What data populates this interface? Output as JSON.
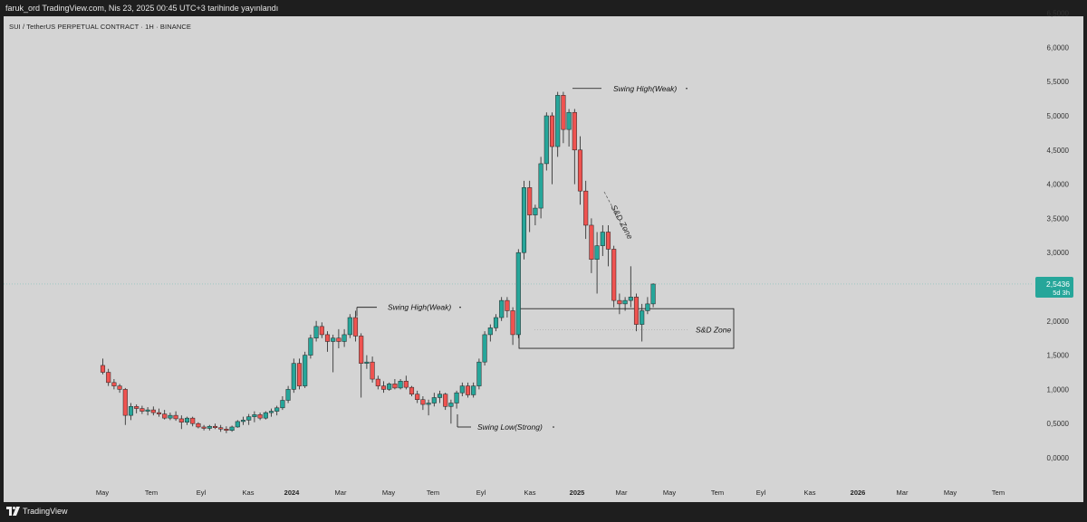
{
  "header": {
    "publish_info": "faruk_ord TradingView.com, Nis 23, 2025 00:45 UTC+3 tarihinde yayınlandı"
  },
  "chart_title": "SUI / TetherUS PERPETUAL CONTRACT · 1H · BINANCE",
  "footer": {
    "brand": "TradingView"
  },
  "colors": {
    "up": "#26a69a",
    "down": "#ef5350",
    "background": "#d4d4d4",
    "price_tag": "#26a69a"
  },
  "chart_data": {
    "type": "candlestick",
    "y_axis": {
      "min": 0,
      "max": 6.5,
      "scale": "linear",
      "position": "right",
      "ticks": [
        "6,5000",
        "6,0000",
        "5,5000",
        "5,0000",
        "4,5000",
        "4,0000",
        "3,5000",
        "3,0000",
        "2,5000",
        "2,0000",
        "1,5000",
        "1,0000",
        "0,5000",
        "0,0000"
      ]
    },
    "x_axis": {
      "ticks": [
        {
          "label": "May",
          "bold": false
        },
        {
          "label": "Tem",
          "bold": false
        },
        {
          "label": "Eyl",
          "bold": false
        },
        {
          "label": "Kas",
          "bold": false
        },
        {
          "label": "2024",
          "bold": true
        },
        {
          "label": "Mar",
          "bold": false
        },
        {
          "label": "May",
          "bold": false
        },
        {
          "label": "Tem",
          "bold": false
        },
        {
          "label": "Eyl",
          "bold": false
        },
        {
          "label": "Kas",
          "bold": false
        },
        {
          "label": "2025",
          "bold": true
        },
        {
          "label": "Mar",
          "bold": false
        },
        {
          "label": "May",
          "bold": false
        },
        {
          "label": "Tem",
          "bold": false
        },
        {
          "label": "Eyl",
          "bold": false
        },
        {
          "label": "Kas",
          "bold": false
        },
        {
          "label": "2026",
          "bold": true
        },
        {
          "label": "Mar",
          "bold": false
        },
        {
          "label": "May",
          "bold": false
        },
        {
          "label": "Tem",
          "bold": false
        }
      ]
    },
    "last_price": {
      "value": "2,5436",
      "countdown": "5d 3h"
    },
    "candles": [
      [
        1.35,
        1.45,
        1.22,
        1.25
      ],
      [
        1.25,
        1.3,
        1.05,
        1.1
      ],
      [
        1.1,
        1.15,
        1.0,
        1.05
      ],
      [
        1.05,
        1.08,
        0.95,
        1.0
      ],
      [
        1.0,
        1.02,
        0.48,
        0.62
      ],
      [
        0.62,
        0.8,
        0.55,
        0.75
      ],
      [
        0.75,
        0.78,
        0.65,
        0.72
      ],
      [
        0.72,
        0.76,
        0.64,
        0.68
      ],
      [
        0.68,
        0.74,
        0.62,
        0.7
      ],
      [
        0.7,
        0.75,
        0.62,
        0.66
      ],
      [
        0.66,
        0.72,
        0.6,
        0.64
      ],
      [
        0.64,
        0.7,
        0.56,
        0.58
      ],
      [
        0.58,
        0.66,
        0.55,
        0.62
      ],
      [
        0.62,
        0.68,
        0.54,
        0.57
      ],
      [
        0.57,
        0.62,
        0.42,
        0.52
      ],
      [
        0.52,
        0.6,
        0.48,
        0.58
      ],
      [
        0.58,
        0.6,
        0.46,
        0.5
      ],
      [
        0.5,
        0.52,
        0.43,
        0.45
      ],
      [
        0.45,
        0.48,
        0.4,
        0.43
      ],
      [
        0.43,
        0.48,
        0.4,
        0.46
      ],
      [
        0.46,
        0.5,
        0.42,
        0.44
      ],
      [
        0.44,
        0.48,
        0.38,
        0.42
      ],
      [
        0.42,
        0.46,
        0.36,
        0.4
      ],
      [
        0.4,
        0.47,
        0.38,
        0.45
      ],
      [
        0.45,
        0.55,
        0.44,
        0.53
      ],
      [
        0.53,
        0.6,
        0.48,
        0.55
      ],
      [
        0.55,
        0.64,
        0.48,
        0.6
      ],
      [
        0.6,
        0.68,
        0.52,
        0.63
      ],
      [
        0.63,
        0.66,
        0.55,
        0.58
      ],
      [
        0.58,
        0.68,
        0.56,
        0.66
      ],
      [
        0.66,
        0.72,
        0.6,
        0.68
      ],
      [
        0.68,
        0.76,
        0.62,
        0.73
      ],
      [
        0.73,
        0.9,
        0.7,
        0.84
      ],
      [
        0.84,
        1.05,
        0.8,
        1.0
      ],
      [
        1.0,
        1.45,
        0.95,
        1.38
      ],
      [
        1.38,
        1.45,
        1.0,
        1.05
      ],
      [
        1.05,
        1.55,
        1.02,
        1.5
      ],
      [
        1.5,
        1.8,
        1.45,
        1.75
      ],
      [
        1.75,
        2.0,
        1.7,
        1.92
      ],
      [
        1.92,
        1.98,
        1.75,
        1.8
      ],
      [
        1.8,
        1.85,
        1.55,
        1.7
      ],
      [
        1.7,
        1.8,
        1.25,
        1.75
      ],
      [
        1.75,
        1.88,
        1.6,
        1.7
      ],
      [
        1.7,
        1.88,
        1.62,
        1.8
      ],
      [
        1.8,
        2.1,
        1.75,
        2.05
      ],
      [
        2.05,
        2.15,
        1.7,
        1.78
      ],
      [
        1.78,
        1.82,
        0.88,
        1.38
      ],
      [
        1.38,
        1.5,
        1.3,
        1.4
      ],
      [
        1.4,
        1.48,
        1.1,
        1.15
      ],
      [
        1.15,
        1.2,
        1.0,
        1.05
      ],
      [
        1.05,
        1.12,
        0.95,
        1.0
      ],
      [
        1.0,
        1.1,
        0.98,
        1.08
      ],
      [
        1.08,
        1.15,
        1.0,
        1.02
      ],
      [
        1.02,
        1.15,
        1.0,
        1.12
      ],
      [
        1.12,
        1.2,
        1.0,
        1.03
      ],
      [
        1.03,
        1.05,
        0.9,
        0.93
      ],
      [
        0.93,
        0.98,
        0.8,
        0.85
      ],
      [
        0.85,
        0.9,
        0.7,
        0.78
      ],
      [
        0.78,
        0.85,
        0.62,
        0.8
      ],
      [
        0.8,
        0.95,
        0.75,
        0.88
      ],
      [
        0.88,
        0.98,
        0.8,
        0.93
      ],
      [
        0.93,
        0.95,
        0.7,
        0.75
      ],
      [
        0.75,
        0.85,
        0.5,
        0.8
      ],
      [
        0.8,
        0.98,
        0.72,
        0.95
      ],
      [
        0.95,
        1.1,
        0.9,
        1.05
      ],
      [
        1.05,
        1.1,
        0.88,
        0.92
      ],
      [
        0.92,
        1.1,
        0.88,
        1.05
      ],
      [
        1.05,
        1.45,
        1.0,
        1.4
      ],
      [
        1.4,
        1.85,
        1.35,
        1.8
      ],
      [
        1.8,
        1.95,
        1.7,
        1.9
      ],
      [
        1.9,
        2.1,
        1.85,
        2.05
      ],
      [
        2.05,
        2.35,
        2.0,
        2.3
      ],
      [
        2.3,
        2.35,
        2.05,
        2.15
      ],
      [
        2.15,
        2.2,
        1.65,
        1.8
      ],
      [
        1.8,
        3.05,
        1.75,
        3.0
      ],
      [
        3.0,
        4.05,
        2.9,
        3.95
      ],
      [
        3.95,
        4.05,
        3.3,
        3.55
      ],
      [
        3.55,
        3.7,
        3.4,
        3.65
      ],
      [
        3.65,
        4.4,
        3.5,
        4.3
      ],
      [
        4.3,
        5.05,
        4.2,
        5.0
      ],
      [
        5.0,
        5.05,
        4.0,
        4.55
      ],
      [
        4.55,
        5.35,
        4.4,
        5.3
      ],
      [
        5.3,
        5.35,
        4.6,
        4.8
      ],
      [
        4.8,
        5.1,
        4.55,
        5.05
      ],
      [
        5.05,
        5.1,
        4.0,
        4.5
      ],
      [
        4.5,
        4.7,
        3.7,
        3.9
      ],
      [
        3.9,
        4.05,
        3.2,
        3.4
      ],
      [
        3.4,
        3.5,
        2.7,
        2.9
      ],
      [
        2.9,
        3.3,
        2.4,
        3.1
      ],
      [
        3.1,
        3.4,
        2.95,
        3.3
      ],
      [
        3.3,
        3.4,
        2.8,
        3.05
      ],
      [
        3.05,
        3.1,
        2.2,
        2.3
      ],
      [
        2.3,
        2.4,
        2.1,
        2.25
      ],
      [
        2.25,
        2.35,
        2.15,
        2.3
      ],
      [
        2.3,
        2.8,
        2.2,
        2.35
      ],
      [
        2.35,
        2.4,
        1.85,
        1.95
      ],
      [
        1.95,
        2.25,
        1.7,
        2.15
      ],
      [
        2.15,
        2.35,
        2.1,
        2.25
      ],
      [
        2.25,
        2.55,
        2.2,
        2.54
      ]
    ],
    "annotations": [
      {
        "text": "Swing High(Weak)",
        "anchor_index": 81,
        "price": 5.4
      },
      {
        "text": "Swing High(Weak)",
        "anchor_index": 45,
        "price": 2.2
      },
      {
        "text": "Swing Low(Strong)",
        "anchor_index": 61,
        "price": 0.45
      },
      {
        "text": "S&D Zone",
        "zone_low": 1.6,
        "zone_high": 2.18
      },
      {
        "text": "$$$",
        "note": "liquidity marker on dashed trendline"
      }
    ]
  }
}
